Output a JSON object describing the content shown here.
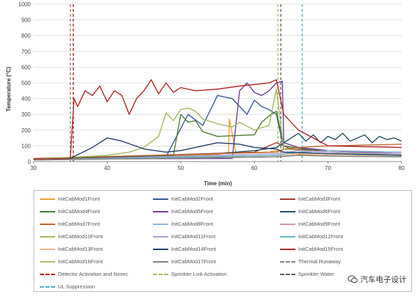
{
  "chart_data": {
    "type": "line",
    "xlabel": "Time (min)",
    "ylabel": "Temperature (°C)",
    "xlim": [
      30,
      80
    ],
    "ylim": [
      0,
      1000
    ],
    "x_ticks": [
      "30",
      "40",
      "50",
      "60",
      "70",
      "80"
    ],
    "y_ticks": [
      "0",
      "100",
      "200",
      "300",
      "400",
      "500",
      "600",
      "700",
      "800",
      "900",
      "1000"
    ],
    "grid": "horizontal",
    "legend_position": "bottom",
    "series": [
      {
        "name": "InitCabMod1Front",
        "color": "#f0a030",
        "x": [
          30,
          45,
          55,
          56.5,
          56.6,
          57.5,
          62,
          63,
          64,
          66,
          70,
          75,
          80
        ],
        "y": [
          15,
          30,
          45,
          60,
          270,
          55,
          60,
          70,
          60,
          45,
          40,
          35,
          30
        ]
      },
      {
        "name": "InitCabMod2Front",
        "color": "#2e5597",
        "x": [
          30,
          48,
          51,
          53,
          55,
          57,
          59,
          60,
          61,
          62,
          63,
          64,
          70,
          75,
          80
        ],
        "y": [
          15,
          30,
          300,
          230,
          420,
          400,
          300,
          390,
          350,
          330,
          300,
          80,
          70,
          60,
          50
        ]
      },
      {
        "name": "InitCabMod3Front",
        "color": "#a83232",
        "x": [
          30,
          60,
          62,
          63,
          64,
          65,
          70,
          75,
          80
        ],
        "y": [
          15,
          60,
          100,
          120,
          100,
          80,
          70,
          60,
          50
        ]
      },
      {
        "name": "InitCabMod4Front",
        "color": "#4a7a2a",
        "x": [
          30,
          49,
          50,
          51,
          52,
          53,
          55,
          60,
          61,
          62,
          63,
          64,
          70,
          80
        ],
        "y": [
          15,
          40,
          300,
          250,
          260,
          190,
          160,
          170,
          250,
          290,
          320,
          100,
          60,
          40
        ]
      },
      {
        "name": "InitCabMod5Front",
        "color": "#6a3d9a",
        "x": [
          30,
          57,
          58,
          59,
          60,
          61,
          62,
          63,
          63.8,
          64,
          66,
          70,
          80
        ],
        "y": [
          15,
          20,
          450,
          500,
          440,
          420,
          450,
          500,
          510,
          120,
          90,
          70,
          50
        ]
      },
      {
        "name": "InitCabMod6Front",
        "color": "#1f4e5a",
        "x": [
          30,
          55,
          60,
          63,
          65,
          66,
          67,
          68,
          69,
          70,
          71,
          72,
          73,
          74,
          75,
          76,
          77,
          78,
          79,
          80
        ],
        "y": [
          15,
          50,
          70,
          90,
          150,
          180,
          130,
          170,
          120,
          160,
          140,
          180,
          130,
          150,
          170,
          120,
          160,
          140,
          150,
          130
        ]
      },
      {
        "name": "InitCabMod7Front",
        "color": "#c0662a",
        "x": [
          30,
          63,
          64,
          66,
          70,
          80
        ],
        "y": [
          20,
          60,
          80,
          90,
          100,
          110
        ]
      },
      {
        "name": "InitCabMod8Front",
        "color": "#8ab0d8",
        "x": [
          30,
          63,
          66,
          70,
          80
        ],
        "y": [
          10,
          40,
          60,
          70,
          60
        ]
      },
      {
        "name": "InitCabMod9Front",
        "color": "#d89090",
        "x": [
          30,
          63,
          66,
          70,
          80
        ],
        "y": [
          10,
          40,
          60,
          50,
          40
        ]
      },
      {
        "name": "InitCabMod10Front",
        "color": "#9bbb59",
        "x": [
          30,
          40,
          43,
          45,
          47,
          48,
          49,
          50,
          51,
          52,
          53,
          55,
          57,
          58,
          60,
          62,
          63,
          64,
          70,
          80
        ],
        "y": [
          15,
          40,
          60,
          90,
          160,
          310,
          260,
          330,
          340,
          320,
          270,
          240,
          220,
          250,
          200,
          230,
          460,
          80,
          60,
          40
        ]
      },
      {
        "name": "InitCabMod11Front",
        "color": "#b09ad0",
        "x": [
          30,
          63,
          66,
          70,
          80
        ],
        "y": [
          10,
          50,
          70,
          60,
          50
        ]
      },
      {
        "name": "InitCabMod12Front",
        "color": "#5bb8c8",
        "x": [
          30,
          63,
          66,
          70,
          80
        ],
        "y": [
          10,
          40,
          60,
          50,
          40
        ]
      },
      {
        "name": "InitCabMod13Front",
        "color": "#f4b183",
        "x": [
          30,
          63,
          66,
          70,
          80
        ],
        "y": [
          10,
          30,
          50,
          40,
          30
        ]
      },
      {
        "name": "InitCabMod14Front",
        "color": "#1f3864",
        "x": [
          30,
          35,
          38,
          40,
          42,
          45,
          48,
          50,
          53,
          55,
          58,
          60,
          63,
          64,
          70,
          80
        ],
        "y": [
          15,
          20,
          90,
          150,
          130,
          80,
          60,
          70,
          100,
          120,
          110,
          90,
          80,
          60,
          50,
          40
        ]
      },
      {
        "name": "InitCabMod15Front",
        "color": "#b22222",
        "x": [
          30,
          35,
          35.5,
          36,
          37,
          38,
          39,
          40,
          41,
          42,
          43,
          44,
          45,
          46,
          47,
          48,
          49,
          50,
          52,
          55,
          58,
          60,
          62,
          63,
          64,
          66,
          70,
          80
        ],
        "y": [
          15,
          20,
          400,
          350,
          450,
          420,
          480,
          380,
          450,
          420,
          300,
          400,
          450,
          520,
          430,
          500,
          440,
          470,
          450,
          460,
          480,
          490,
          500,
          520,
          300,
          200,
          100,
          90
        ]
      },
      {
        "name": "InitCabMod16Front",
        "color": "#a9c46c",
        "x": [
          30,
          63,
          66,
          70,
          80
        ],
        "y": [
          10,
          30,
          40,
          35,
          30
        ]
      },
      {
        "name": "InitCabMod17Front",
        "color": "#7f7f7f",
        "x": [
          30,
          63,
          66,
          70,
          80
        ],
        "y": [
          10,
          30,
          40,
          35,
          30
        ]
      }
    ],
    "events": [
      {
        "name": "Thermal Runaway",
        "x": 35.0,
        "color": "#7f7f7f",
        "dash": "4,3"
      },
      {
        "name": "Detector Activation and Novec",
        "x": 35.4,
        "color": "#c00000",
        "dash": "4,3"
      },
      {
        "name": "Sprinkler Link Activation",
        "x": 63.2,
        "color": "#9bbb59",
        "dash": "4,3"
      },
      {
        "name": "Sprinkler Water",
        "x": 63.6,
        "color": "#595959",
        "dash": "4,3"
      },
      {
        "name": "UL Suppression",
        "x": 66.5,
        "color": "#4bacc6",
        "dash": "4,3"
      }
    ],
    "legend_labels": [
      "InitCabMod1Front",
      "InitCabMod2Front",
      "InitCabMod3Front",
      "InitCabMod4Front",
      "InitCabMod5Front",
      "InitCabMod6Front",
      "InitCabMod7Front",
      "InitCabMod8Front",
      "InitCabMod9Front",
      "InitCabMod10Front",
      "InitCabMod11Front",
      "InitCabMod12Front",
      "InitCabMod13Front",
      "InitCabMod14Front",
      "InitCabMod15Front",
      "InitCabMod16Front",
      "InitCabMod17Front",
      "Thermal Runaway",
      "Detector Activation and Novec",
      "Sprinkler Link Activation",
      "Sprinkler Water",
      "UL Suppression"
    ]
  },
  "watermark": {
    "text": "汽车电子设计"
  }
}
